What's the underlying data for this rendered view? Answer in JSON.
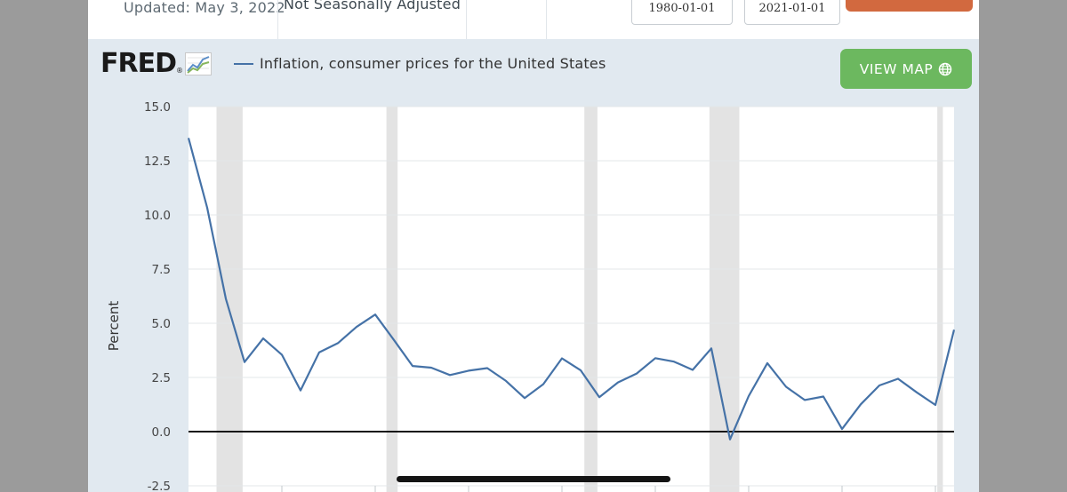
{
  "header": {
    "updated": "Updated: May 3, 2022",
    "seasonal": "Not Seasonally Adjusted",
    "start_date": "1980-01-01",
    "end_date": "2021-01-01"
  },
  "logo": {
    "text": "FRED"
  },
  "legend": {
    "label": "Inflation, consumer prices for the United States"
  },
  "view_map": {
    "label": "VIEW MAP"
  },
  "colors": {
    "series": "#4572a7",
    "recession": "#e3e3e3",
    "plot_bg": "#ffffff",
    "frame_bg": "#e1e9f0",
    "view_map": "#6cb85f",
    "edit_button": "#d2693f"
  },
  "chart_data": {
    "type": "line",
    "title": "",
    "xlabel": "",
    "ylabel": "Percent",
    "ylim": [
      -2.5,
      15.0
    ],
    "yticks": [
      "15.0",
      "12.5",
      "10.0",
      "7.5",
      "5.0",
      "2.5",
      "0.0",
      "-2.5"
    ],
    "ytick_values": [
      15.0,
      12.5,
      10.0,
      7.5,
      5.0,
      2.5,
      0.0,
      -2.5
    ],
    "xlim": [
      1980,
      2021
    ],
    "grid": true,
    "zero_line": true,
    "recessions": [
      [
        1981.5,
        1982.9
      ],
      [
        1990.6,
        1991.2
      ],
      [
        2001.2,
        2001.9
      ],
      [
        2007.9,
        2009.5
      ],
      [
        2020.1,
        2020.4
      ]
    ],
    "series": [
      {
        "name": "Inflation, consumer prices for the United States",
        "x": [
          1980,
          1981,
          1982,
          1983,
          1984,
          1985,
          1986,
          1987,
          1988,
          1989,
          1990,
          1991,
          1992,
          1993,
          1994,
          1995,
          1996,
          1997,
          1998,
          1999,
          2000,
          2001,
          2002,
          2003,
          2004,
          2005,
          2006,
          2007,
          2008,
          2009,
          2010,
          2011,
          2012,
          2013,
          2014,
          2015,
          2016,
          2017,
          2018,
          2019,
          2020,
          2021
        ],
        "values": [
          13.55,
          10.33,
          6.13,
          3.21,
          4.3,
          3.55,
          1.9,
          3.66,
          4.08,
          4.83,
          5.4,
          4.23,
          3.03,
          2.95,
          2.61,
          2.81,
          2.93,
          2.34,
          1.55,
          2.19,
          3.38,
          2.83,
          1.59,
          2.27,
          2.68,
          3.39,
          3.23,
          2.85,
          3.84,
          -0.36,
          1.64,
          3.16,
          2.07,
          1.46,
          1.62,
          0.12,
          1.26,
          2.13,
          2.44,
          1.81,
          1.23,
          4.7
        ]
      }
    ]
  }
}
